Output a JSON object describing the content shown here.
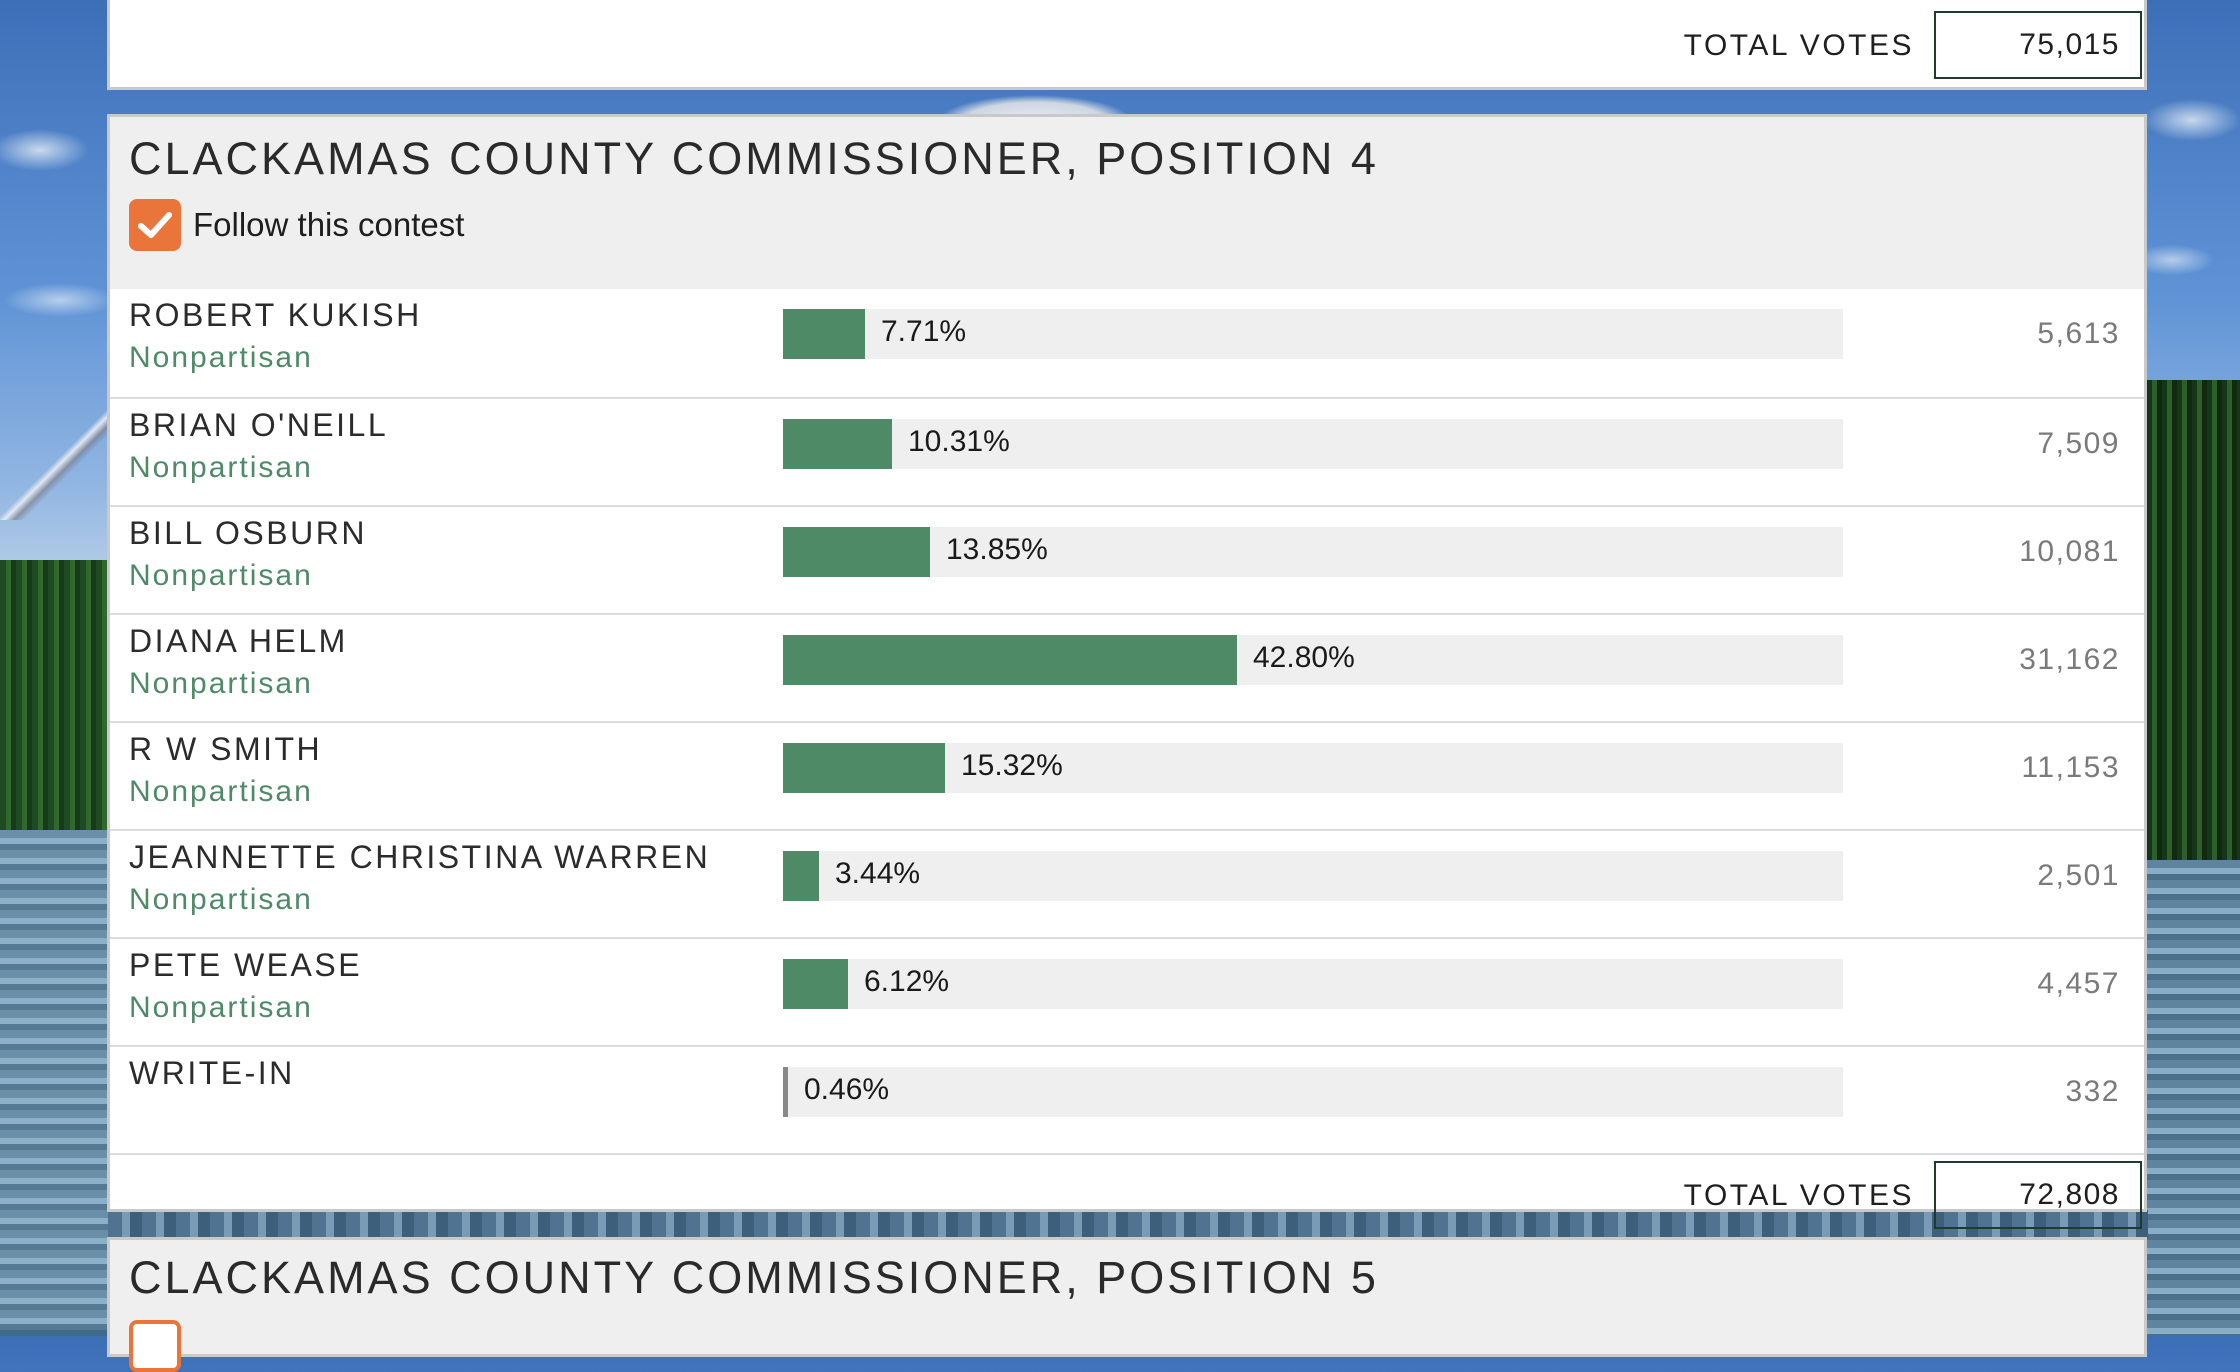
{
  "previous_contest": {
    "total_votes_label": "TOTAL VOTES",
    "total_votes": "75,015"
  },
  "contest": {
    "title": "CLACKAMAS COUNTY COMMISSIONER, POSITION 4",
    "follow_label": "Follow this contest",
    "follow_checked": true,
    "candidates": [
      {
        "name": "ROBERT KUKISH",
        "party": "Nonpartisan",
        "percent": "7.71%",
        "share": 7.71,
        "votes": "5,613"
      },
      {
        "name": "BRIAN O'NEILL",
        "party": "Nonpartisan",
        "percent": "10.31%",
        "share": 10.31,
        "votes": "7,509"
      },
      {
        "name": "BILL OSBURN",
        "party": "Nonpartisan",
        "percent": "13.85%",
        "share": 13.85,
        "votes": "10,081"
      },
      {
        "name": "DIANA HELM",
        "party": "Nonpartisan",
        "percent": "42.80%",
        "share": 42.8,
        "votes": "31,162"
      },
      {
        "name": "R W SMITH",
        "party": "Nonpartisan",
        "percent": "15.32%",
        "share": 15.32,
        "votes": "11,153"
      },
      {
        "name": "JEANNETTE CHRISTINA WARREN",
        "party": "Nonpartisan",
        "percent": "3.44%",
        "share": 3.44,
        "votes": "2,501"
      },
      {
        "name": "PETE WEASE",
        "party": "Nonpartisan",
        "percent": "6.12%",
        "share": 6.12,
        "votes": "4,457"
      },
      {
        "name": "WRITE-IN",
        "party": "",
        "percent": "0.46%",
        "share": 0.46,
        "votes": "332"
      }
    ],
    "total_votes_label": "TOTAL VOTES",
    "total_votes": "72,808"
  },
  "next_contest": {
    "title": "CLACKAMAS COUNTY COMMISSIONER, POSITION 5"
  },
  "colors": {
    "bar": "#4f8a67",
    "party": "#4f8a67",
    "checkbox": "#e9753a"
  }
}
